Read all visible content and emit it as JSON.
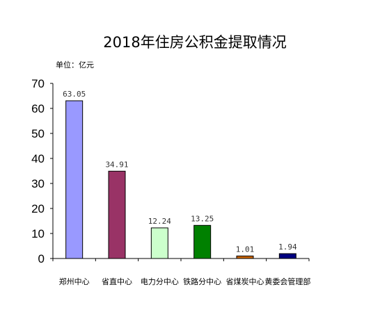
{
  "chart_data": {
    "type": "bar",
    "title": "2018年住房公积金提取情况",
    "unit_label": "单位：亿元",
    "categories": [
      "郑州中心",
      "省直中心",
      "电力分中心",
      "铁路分中心",
      "省煤炭中心",
      "黄委会管理部"
    ],
    "values": [
      63.05,
      34.91,
      12.24,
      13.25,
      1.01,
      1.94
    ],
    "value_labels": [
      "63.05",
      "34.91",
      "12.24",
      "13.25",
      "1.01",
      "1.94"
    ],
    "colors": [
      "#9999ff",
      "#993366",
      "#ccffcc",
      "#008000",
      "#cc6600",
      "#000080"
    ],
    "ylim": [
      0,
      70
    ],
    "yticks": [
      "0",
      "10",
      "20",
      "30",
      "40",
      "50",
      "60",
      "70"
    ],
    "grid": false,
    "legend": "none"
  }
}
